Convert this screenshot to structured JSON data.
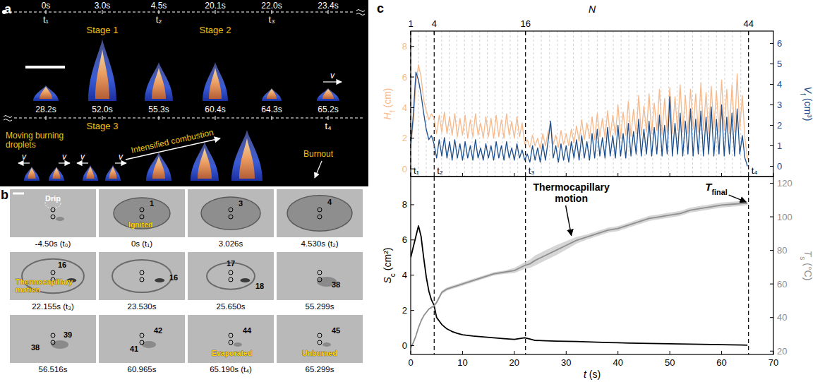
{
  "panel_a": {
    "letter": "a",
    "rows": [
      {
        "entries": [
          {
            "time": "0s",
            "marker": "t₁"
          },
          {
            "time": "3.0s"
          },
          {
            "time": "4.5s",
            "marker": "t₂"
          },
          {
            "time": "20.1s"
          },
          {
            "time": "22.0s",
            "marker": "t₃"
          },
          {
            "time": "23.4s"
          }
        ],
        "stages": [
          "Stage 1",
          "Stage 2"
        ]
      },
      {
        "entries": [
          {
            "time": "28.2s"
          },
          {
            "time": "52.0s"
          },
          {
            "time": "55.3s"
          },
          {
            "time": "60.4s"
          },
          {
            "time": "64.3s"
          },
          {
            "time": "65.2s",
            "marker": "t₄"
          }
        ],
        "stages": [
          "Stage 3"
        ]
      }
    ],
    "annotations": {
      "moving": "Moving burning droplets",
      "intensified": "Intensified combustion",
      "burnout": "Burnout",
      "velocity": "v"
    }
  },
  "panel_b": {
    "letter": "b",
    "frames": [
      {
        "caption": "-4.50s (t₀)",
        "notes": [
          "Drip"
        ]
      },
      {
        "caption": "0s (t₁)",
        "notes": [
          "1",
          "Ignited"
        ]
      },
      {
        "caption": "3.026s",
        "notes": [
          "3"
        ]
      },
      {
        "caption": "4.530s (t₂)",
        "notes": [
          "4"
        ]
      },
      {
        "caption": "22.155s (t₃)",
        "notes": [
          "16",
          "Thermocapillary motion"
        ]
      },
      {
        "caption": "23.530s",
        "notes": [
          "16"
        ]
      },
      {
        "caption": "25.650s",
        "notes": [
          "17",
          "18"
        ]
      },
      {
        "caption": "55.299s",
        "notes": [
          "38"
        ]
      },
      {
        "caption": "56.516s",
        "notes": [
          "38",
          "39"
        ]
      },
      {
        "caption": "60.965s",
        "notes": [
          "41",
          "42"
        ]
      },
      {
        "caption": "65.190s (t₄)",
        "notes": [
          "44",
          "Evaporated"
        ]
      },
      {
        "caption": "65.299s",
        "notes": [
          "45",
          "Unburned"
        ]
      }
    ]
  },
  "panel_c": {
    "letter": "c"
  },
  "chart_data": [
    {
      "type": "line",
      "tick_labels": "y",
      "xlim": [
        0,
        70
      ],
      "xticks": [
        0,
        10,
        20,
        30,
        40,
        50,
        60,
        70
      ],
      "ylim": [
        -0.5,
        9
      ],
      "yticks": [
        0,
        2,
        4,
        6,
        8
      ],
      "y2lim": [
        -0.5,
        6.6
      ],
      "y2ticks": [
        0,
        1,
        2,
        3,
        4,
        5,
        6
      ],
      "ylabel": {
        "symbol": "H",
        "sub": "f",
        "unit": "(cm)"
      },
      "y2label": {
        "symbol": "V",
        "sub": "f",
        "unit": "(cm³)"
      },
      "n_axis": {
        "label": "N",
        "ticks": [
          {
            "value": 0,
            "label": "1"
          },
          {
            "value": 4.53,
            "label": "4"
          },
          {
            "value": 22.155,
            "label": "16"
          },
          {
            "value": 65.19,
            "label": "44"
          }
        ],
        "lines": [
          1.5,
          3.0,
          5.97,
          7.44,
          8.91,
          10.38,
          11.85,
          13.32,
          14.79,
          16.26,
          17.73,
          19.2,
          20.67,
          23.7,
          25.2,
          26.8,
          28.3,
          29.8,
          31.4,
          32.9,
          34.4,
          36.0,
          37.5,
          39.1,
          40.6,
          42.1,
          43.7,
          45.2,
          46.7,
          48.3,
          49.8,
          51.4,
          52.9,
          54.4,
          56.0,
          57.5,
          59.0,
          60.6,
          62.1,
          63.7
        ]
      },
      "markers": [
        {
          "value": 0,
          "label": "t₁"
        },
        {
          "value": 4.53,
          "label": "t₂"
        },
        {
          "value": 22.155,
          "label": "t₃"
        },
        {
          "value": 65.19,
          "label": "t₄"
        }
      ],
      "x": [
        0,
        0.5,
        1,
        1.5,
        2,
        2.5,
        3,
        3.5,
        4,
        4.5,
        5,
        5.5,
        6,
        6.5,
        7,
        7.5,
        8,
        8.5,
        9,
        9.5,
        10,
        10.5,
        11,
        11.5,
        12,
        12.5,
        13,
        13.5,
        14,
        14.5,
        15,
        15.5,
        16,
        16.5,
        17,
        17.5,
        18,
        18.5,
        19,
        19.5,
        20,
        20.5,
        21,
        21.5,
        22,
        22.5,
        23,
        23.5,
        24,
        24.5,
        25,
        25.5,
        26,
        26.5,
        27,
        27.5,
        28,
        28.5,
        29,
        29.5,
        30,
        30.5,
        31,
        31.5,
        32,
        32.5,
        33,
        33.5,
        34,
        34.5,
        35,
        35.5,
        36,
        36.5,
        37,
        37.5,
        38,
        38.5,
        39,
        39.5,
        40,
        40.5,
        41,
        41.5,
        42,
        42.5,
        43,
        43.5,
        44,
        44.5,
        45,
        45.5,
        46,
        46.5,
        47,
        47.5,
        48,
        48.5,
        49,
        49.5,
        50,
        50.5,
        51,
        51.5,
        52,
        52.5,
        53,
        53.5,
        54,
        54.5,
        55,
        55.5,
        56,
        56.5,
        57,
        57.5,
        58,
        58.5,
        59,
        59.5,
        60,
        60.5,
        61,
        61.5,
        62,
        62.5,
        63,
        63.5,
        64,
        64.5,
        65
      ],
      "series": [
        {
          "color": "#f7b98b",
          "values": [
            1.5,
            3.0,
            5.5,
            6.8,
            6.0,
            4.5,
            3.8,
            3.2,
            3.6,
            3.3,
            2.3,
            3.5,
            2.4,
            3.7,
            2.3,
            3.4,
            2.2,
            3.6,
            2.1,
            3.3,
            2.2,
            3.5,
            2.0,
            3.2,
            2.1,
            3.6,
            2.2,
            3.0,
            2.0,
            3.4,
            2.1,
            3.3,
            2.0,
            3.5,
            2.1,
            3.2,
            2.0,
            3.6,
            2.2,
            3.1,
            2.0,
            3.4,
            2.1,
            3.0,
            1.6,
            1.9,
            1.4,
            2.2,
            1.5,
            2.0,
            1.3,
            2.3,
            1.5,
            2.4,
            2.9,
            1.6,
            2.2,
            1.4,
            2.5,
            1.6,
            2.3,
            1.5,
            2.6,
            1.7,
            2.8,
            1.8,
            3.2,
            1.9,
            3.0,
            2.0,
            3.4,
            1.9,
            3.6,
            2.1,
            3.3,
            2.0,
            3.8,
            2.1,
            3.5,
            2.2,
            4.2,
            2.0,
            3.7,
            2.2,
            4.4,
            2.1,
            3.9,
            2.3,
            4.8,
            2.2,
            4.1,
            2.4,
            4.9,
            2.3,
            4.3,
            2.5,
            5.2,
            2.2,
            4.6,
            2.4,
            5.3,
            2.3,
            4.7,
            2.5,
            5.5,
            2.4,
            4.8,
            2.3,
            5.2,
            2.6,
            4.9,
            2.4,
            5.6,
            2.5,
            5.0,
            2.3,
            5.4,
            2.6,
            5.1,
            2.4,
            5.8,
            2.5,
            5.2,
            2.3,
            5.5,
            2.4,
            6.2,
            2.6,
            4.8,
            2.0,
            0.6
          ]
        },
        {
          "color": "#1c4f8e",
          "axis": "y2",
          "values": [
            1.0,
            2.5,
            4.6,
            4.2,
            3.5,
            2.6,
            1.8,
            1.3,
            1.5,
            1.1,
            0.4,
            1.3,
            0.5,
            1.4,
            0.4,
            1.2,
            0.3,
            1.3,
            0.4,
            1.1,
            0.3,
            1.2,
            0.4,
            1.0,
            0.3,
            1.3,
            0.4,
            0.9,
            0.3,
            1.1,
            0.4,
            1.0,
            0.3,
            1.2,
            0.4,
            1.0,
            0.3,
            1.2,
            0.4,
            0.9,
            0.3,
            1.1,
            0.4,
            0.8,
            0.3,
            0.6,
            0.2,
            1.0,
            0.3,
            0.9,
            0.2,
            1.1,
            0.3,
            1.2,
            2.2,
            0.4,
            1.0,
            0.2,
            1.1,
            0.3,
            1.0,
            0.2,
            1.2,
            0.4,
            1.3,
            0.3,
            1.5,
            0.4,
            1.2,
            0.3,
            1.6,
            0.4,
            1.8,
            0.5,
            1.4,
            0.4,
            1.9,
            0.5,
            1.5,
            0.4,
            2.0,
            0.5,
            1.6,
            0.4,
            2.1,
            0.5,
            1.7,
            0.6,
            2.3,
            0.5,
            1.8,
            0.6,
            2.2,
            0.5,
            1.9,
            0.6,
            2.5,
            0.5,
            2.0,
            0.6,
            3.4,
            0.5,
            2.1,
            0.6,
            2.6,
            0.5,
            2.2,
            0.6,
            2.8,
            0.5,
            2.3,
            0.6,
            2.7,
            0.5,
            2.4,
            0.6,
            2.9,
            0.5,
            2.3,
            0.6,
            3.0,
            0.5,
            2.4,
            0.6,
            2.6,
            0.5,
            2.8,
            0.6,
            1.5,
            0.4,
            0.0
          ]
        }
      ]
    },
    {
      "type": "line",
      "xlim": [
        0,
        70
      ],
      "xticks": [
        0,
        10,
        20,
        30,
        40,
        50,
        60,
        70
      ],
      "xlabel": {
        "symbol": "t",
        "unit": "(s)"
      },
      "ylim": [
        -0.5,
        9.6
      ],
      "yticks": [
        0,
        2,
        4,
        6,
        8
      ],
      "y2lim": [
        18,
        124
      ],
      "y2ticks": [
        20,
        40,
        60,
        80,
        100,
        120
      ],
      "ylabel": {
        "symbol": "S",
        "sub": "c",
        "unit": "(cm²)"
      },
      "y2label": {
        "symbol": "T",
        "sub": "s",
        "unit": "(°C)"
      },
      "markers": [
        4.53,
        22.155,
        65.19
      ],
      "x": [
        0,
        0.5,
        1,
        1.5,
        2,
        2.5,
        3,
        3.5,
        4,
        4.5,
        5,
        6,
        7,
        8,
        9,
        10,
        12,
        14,
        16,
        18,
        20,
        22,
        23,
        24,
        26,
        28,
        30,
        32,
        34,
        36,
        38,
        40,
        42,
        44,
        46,
        48,
        50,
        52,
        54,
        56,
        58,
        60,
        62,
        64,
        65
      ],
      "series": [
        {
          "color": "#000000",
          "values": [
            5.0,
            5.6,
            6.2,
            6.8,
            6.2,
            5.0,
            3.9,
            3.1,
            2.6,
            2.3,
            1.6,
            1.2,
            0.95,
            0.8,
            0.7,
            0.62,
            0.55,
            0.5,
            0.45,
            0.4,
            0.36,
            0.45,
            0.38,
            0.3,
            0.28,
            0.26,
            0.25,
            0.24,
            0.22,
            0.2,
            0.18,
            0.17,
            0.15,
            0.14,
            0.13,
            0.12,
            0.11,
            0.1,
            0.09,
            0.08,
            0.07,
            0.06,
            0.05,
            0.04,
            0.03
          ]
        },
        {
          "color": "#8f8f8f",
          "axis": "y2",
          "values": [
            22,
            25,
            29,
            34,
            38,
            41,
            43,
            45,
            46,
            47,
            49,
            55,
            57,
            58,
            59,
            60,
            62,
            64,
            66,
            67,
            68,
            71,
            72,
            74,
            77,
            80,
            83,
            86,
            88,
            90,
            92,
            93,
            95,
            97,
            99,
            100,
            101,
            102,
            104,
            105,
            106,
            107,
            107.5,
            108,
            108
          ],
          "errors": [
            0.5,
            0.5,
            0.5,
            0.5,
            0.5,
            0.5,
            0.5,
            0.5,
            0.5,
            0.5,
            1,
            1,
            1,
            1,
            1,
            1,
            1,
            1,
            1,
            1,
            1.5,
            2,
            2.5,
            3,
            3,
            3,
            2.5,
            2,
            1.5,
            1.5,
            1.5,
            1.5,
            1.5,
            1.5,
            1.5,
            1.5,
            1.5,
            1.5,
            1.5,
            1.5,
            1.5,
            1.5,
            1.5,
            1.5,
            1
          ]
        }
      ],
      "annotations": [
        {
          "text": "Thermocapillary motion",
          "at": [
            31,
            88
          ],
          "axis": "y2"
        },
        {
          "text": {
            "symbol": "T",
            "sub": "final"
          },
          "at": [
            65,
            108
          ],
          "axis": "y2"
        }
      ]
    }
  ]
}
